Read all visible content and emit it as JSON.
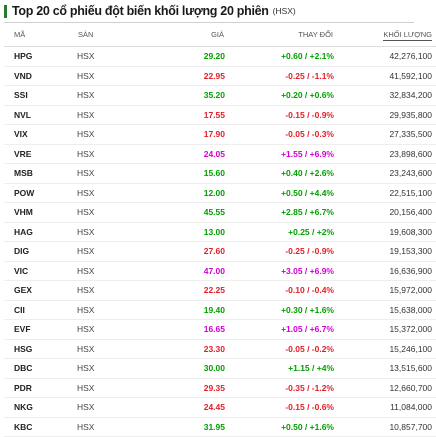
{
  "header": {
    "title": "Top 20 cổ phiếu đột biến khối lượng 20 phiên",
    "subtitle": "(HSX)"
  },
  "table": {
    "columns": {
      "code": "MÃ",
      "exchange": "SÀN",
      "price": "GIÁ",
      "change": "THAY ĐỔI",
      "volume": "KHỐI LƯỢNG"
    },
    "colors": {
      "up": "#00a000",
      "down": "#e0202a",
      "ceiling": "#d100d1"
    },
    "rows": [
      {
        "code": "HPG",
        "exchange": "HSX",
        "price": "29.20",
        "change": "+0.60 / +2.1%",
        "volume": "42,276,100",
        "trend": "up"
      },
      {
        "code": "VND",
        "exchange": "HSX",
        "price": "22.95",
        "change": "-0.25 / -1.1%",
        "volume": "41,592,100",
        "trend": "down"
      },
      {
        "code": "SSI",
        "exchange": "HSX",
        "price": "35.20",
        "change": "+0.20 / +0.6%",
        "volume": "32,834,200",
        "trend": "up"
      },
      {
        "code": "NVL",
        "exchange": "HSX",
        "price": "17.55",
        "change": "-0.15 / -0.9%",
        "volume": "29,935,800",
        "trend": "down"
      },
      {
        "code": "VIX",
        "exchange": "HSX",
        "price": "17.90",
        "change": "-0.05 / -0.3%",
        "volume": "27,335,500",
        "trend": "down"
      },
      {
        "code": "VRE",
        "exchange": "HSX",
        "price": "24.05",
        "change": "+1.55 / +6.9%",
        "volume": "23,898,600",
        "trend": "ceiling"
      },
      {
        "code": "MSB",
        "exchange": "HSX",
        "price": "15.60",
        "change": "+0.40 / +2.6%",
        "volume": "23,243,600",
        "trend": "up"
      },
      {
        "code": "POW",
        "exchange": "HSX",
        "price": "12.00",
        "change": "+0.50 / +4.4%",
        "volume": "22,515,100",
        "trend": "up"
      },
      {
        "code": "VHM",
        "exchange": "HSX",
        "price": "45.55",
        "change": "+2.85 / +6.7%",
        "volume": "20,156,400",
        "trend": "up"
      },
      {
        "code": "HAG",
        "exchange": "HSX",
        "price": "13.00",
        "change": "+0.25 / +2%",
        "volume": "19,608,300",
        "trend": "up"
      },
      {
        "code": "DIG",
        "exchange": "HSX",
        "price": "27.60",
        "change": "-0.25 / -0.9%",
        "volume": "19,153,300",
        "trend": "down"
      },
      {
        "code": "VIC",
        "exchange": "HSX",
        "price": "47.00",
        "change": "+3.05 / +6.9%",
        "volume": "16,636,900",
        "trend": "ceiling"
      },
      {
        "code": "GEX",
        "exchange": "HSX",
        "price": "22.25",
        "change": "-0.10 / -0.4%",
        "volume": "15,972,000",
        "trend": "down"
      },
      {
        "code": "CII",
        "exchange": "HSX",
        "price": "19.40",
        "change": "+0.30 / +1.6%",
        "volume": "15,638,000",
        "trend": "up"
      },
      {
        "code": "EVF",
        "exchange": "HSX",
        "price": "16.65",
        "change": "+1.05 / +6.7%",
        "volume": "15,372,000",
        "trend": "ceiling"
      },
      {
        "code": "HSG",
        "exchange": "HSX",
        "price": "23.30",
        "change": "-0.05 / -0.2%",
        "volume": "15,246,100",
        "trend": "down"
      },
      {
        "code": "DBC",
        "exchange": "HSX",
        "price": "30.00",
        "change": "+1.15 / +4%",
        "volume": "13,515,600",
        "trend": "up"
      },
      {
        "code": "PDR",
        "exchange": "HSX",
        "price": "29.35",
        "change": "-0.35 / -1.2%",
        "volume": "12,660,700",
        "trend": "down"
      },
      {
        "code": "NKG",
        "exchange": "HSX",
        "price": "24.45",
        "change": "-0.15 / -0.6%",
        "volume": "11,084,000",
        "trend": "down"
      },
      {
        "code": "KBC",
        "exchange": "HSX",
        "price": "31.95",
        "change": "+0.50 / +1.6%",
        "volume": "10,857,700",
        "trend": "up"
      }
    ]
  }
}
